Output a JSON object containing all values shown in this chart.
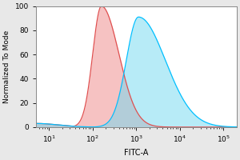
{
  "title": "",
  "xlabel": "FITC-A",
  "ylabel": "Normalized To Mode",
  "xlim_log": [
    0.7,
    5.3
  ],
  "ylim": [
    0,
    100
  ],
  "yticks": [
    0,
    20,
    40,
    60,
    80,
    100
  ],
  "red_peak_log_mean": 2.2,
  "red_peak_log_std": 0.2,
  "red_peak_height": 100,
  "blue_peak_log_mean": 3.05,
  "blue_peak_log_std": 0.28,
  "blue_peak_height": 91,
  "blue_line_color": "#00BFFF",
  "red_line_color": "#E05050",
  "blue_fill_color": "#70D8F0",
  "red_fill_color": "#F09090",
  "background_color": "#e8e8e8",
  "plot_bg": "#ffffff",
  "xlabel_fontsize": 7,
  "ylabel_fontsize": 6.5,
  "tick_fontsize": 6.5,
  "figsize": [
    3.0,
    2.0
  ],
  "dpi": 100
}
